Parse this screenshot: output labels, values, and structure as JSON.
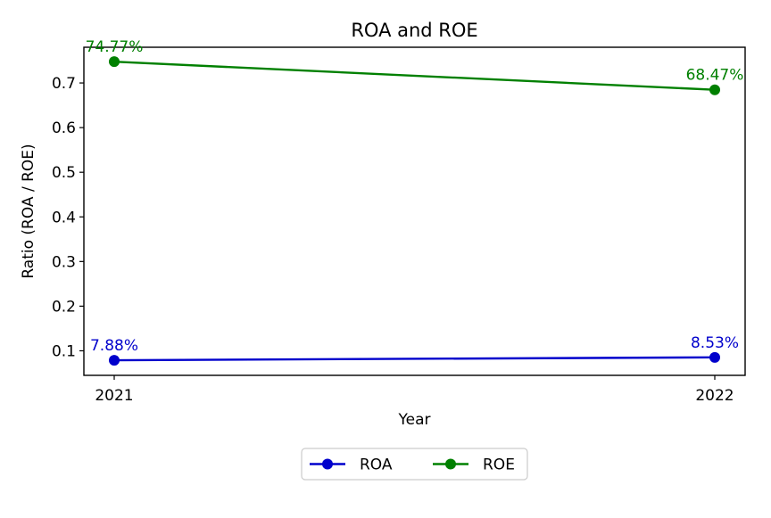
{
  "chart_data": {
    "type": "line",
    "title": "ROA and ROE",
    "xlabel": "Year",
    "ylabel": "Ratio (ROA / ROE)",
    "categories": [
      "2021",
      "2022"
    ],
    "yticks": [
      0.1,
      0.2,
      0.3,
      0.4,
      0.5,
      0.6,
      0.7
    ],
    "ytick_labels": [
      "0.1",
      "0.2",
      "0.3",
      "0.4",
      "0.5",
      "0.6",
      "0.7"
    ],
    "ylim": [
      0.045,
      0.78
    ],
    "grid": false,
    "legend_placement": "bottom-center",
    "series": [
      {
        "name": "ROA",
        "color": "#0000cc",
        "values": [
          0.0788,
          0.0853
        ],
        "labels": [
          "7.88%",
          "8.53%"
        ]
      },
      {
        "name": "ROE",
        "color": "#008000",
        "values": [
          0.7477,
          0.6847
        ],
        "labels": [
          "74.77%",
          "68.47%"
        ]
      }
    ]
  }
}
